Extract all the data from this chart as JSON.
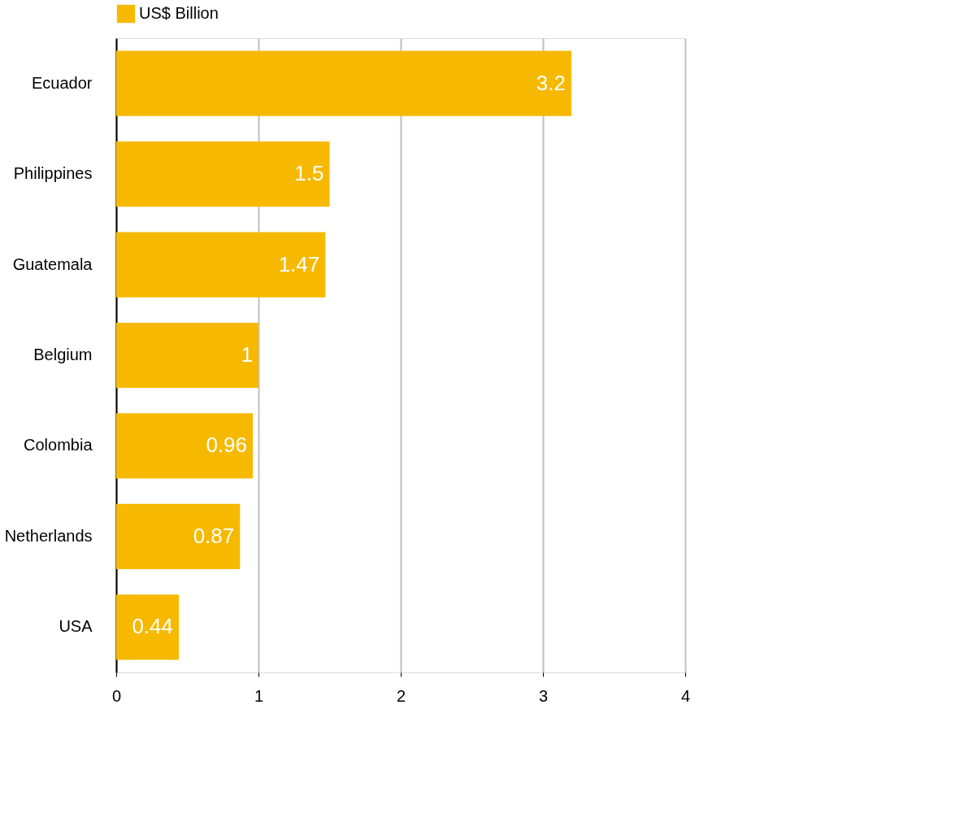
{
  "chart_data": {
    "type": "bar",
    "orientation": "horizontal",
    "categories": [
      "Ecuador",
      "Philippines",
      "Guatemala",
      "Belgium",
      "Colombia",
      "Netherlands",
      "USA"
    ],
    "series": [
      {
        "name": "US$ Billion",
        "color": "#f6b900",
        "values": [
          3.2,
          1.5,
          1.47,
          1,
          0.96,
          0.87,
          0.44
        ]
      }
    ],
    "xlim": [
      0,
      4
    ],
    "xticks": [
      0,
      1,
      2,
      3,
      4
    ],
    "grid": "x",
    "legend": "top",
    "data_labels": true
  }
}
